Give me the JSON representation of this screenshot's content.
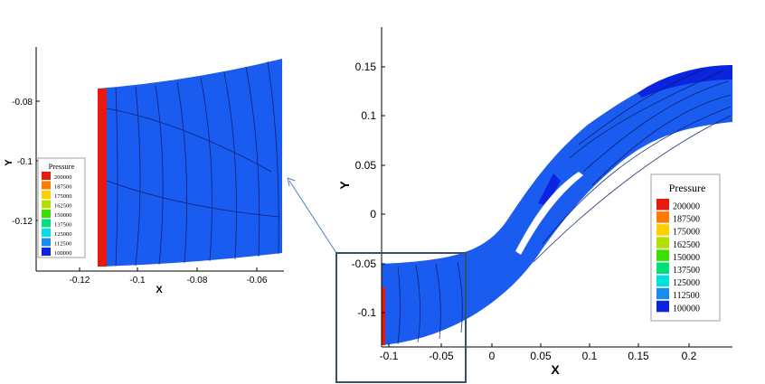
{
  "colors": {
    "main_fill": "#1a5cf0",
    "deep_fill": "#0b24e0",
    "high_pressure": "#e81a0d",
    "zoom_box": "#34506e",
    "arrow": "#4a7fc0"
  },
  "legend": {
    "title": "Pressure",
    "levels": [
      {
        "label": "200000",
        "color": "#e81a0d"
      },
      {
        "label": "187500",
        "color": "#ff7a00"
      },
      {
        "label": "175000",
        "color": "#ffd000"
      },
      {
        "label": "162500",
        "color": "#b4e000"
      },
      {
        "label": "150000",
        "color": "#3ce000"
      },
      {
        "label": "137500",
        "color": "#00e07a"
      },
      {
        "label": "125000",
        "color": "#00e0e0"
      },
      {
        "label": "112500",
        "color": "#1a8cf0"
      },
      {
        "label": "100000",
        "color": "#0b24e0"
      }
    ]
  },
  "chart_data": [
    {
      "type": "contour",
      "title": "",
      "xlabel": "X",
      "ylabel": "Y",
      "xlim": [
        -0.115,
        0.245
      ],
      "ylim": [
        -0.135,
        0.19
      ],
      "xticks": [
        "-0.1",
        "-0.05",
        "0",
        "0.05",
        "0.1",
        "0.15",
        "0.2"
      ],
      "yticks": [
        "0.15",
        "0.1",
        "0.05",
        "0",
        "-0.05",
        "-0.1"
      ],
      "legend_title": "Pressure"
    },
    {
      "type": "contour",
      "title": "",
      "xlabel": "X",
      "ylabel": "Y",
      "xlim": [
        -0.128,
        -0.052
      ],
      "ylim": [
        -0.138,
        -0.062
      ],
      "xticks": [
        "-0.12",
        "-0.1",
        "-0.08",
        "-0.06"
      ],
      "yticks": [
        "-0.08",
        "-0.1",
        "-0.12"
      ],
      "legend_title": "Pressure"
    }
  ]
}
